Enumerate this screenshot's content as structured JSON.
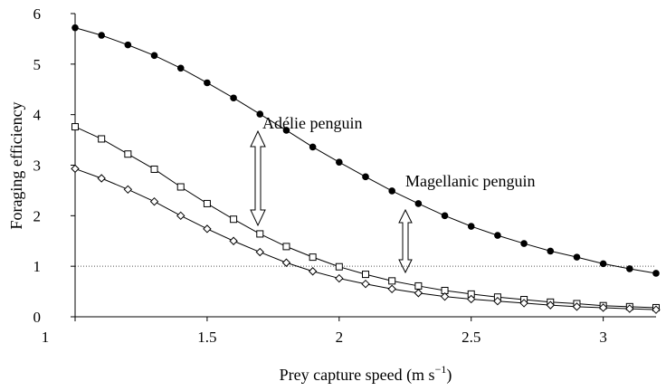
{
  "chart_data": {
    "type": "line",
    "x": [
      1,
      1.1,
      1.2,
      1.3,
      1.4,
      1.5,
      1.6,
      1.7,
      1.8,
      1.9,
      2,
      2.1,
      2.2,
      2.3,
      2.4,
      2.5,
      2.6,
      2.7,
      2.8,
      2.9,
      3,
      3.1,
      3.2
    ],
    "series": [
      {
        "marker": "circle",
        "color": "#000000",
        "values": [
          5.72,
          5.57,
          5.38,
          5.17,
          4.92,
          4.63,
          4.33,
          4.01,
          3.69,
          3.36,
          3.06,
          2.77,
          2.49,
          2.24,
          2.0,
          1.79,
          1.61,
          1.45,
          1.3,
          1.18,
          1.05,
          0.95,
          0.86
        ]
      },
      {
        "marker": "square",
        "color": "#000000",
        "values": [
          3.76,
          3.52,
          3.22,
          2.92,
          2.57,
          2.24,
          1.93,
          1.64,
          1.39,
          1.18,
          0.99,
          0.84,
          0.71,
          0.61,
          0.52,
          0.45,
          0.39,
          0.34,
          0.29,
          0.26,
          0.22,
          0.2,
          0.18
        ]
      },
      {
        "marker": "diamond",
        "color": "#000000",
        "values": [
          2.93,
          2.74,
          2.52,
          2.28,
          2.0,
          1.74,
          1.5,
          1.28,
          1.07,
          0.9,
          0.76,
          0.65,
          0.55,
          0.47,
          0.4,
          0.35,
          0.31,
          0.27,
          0.23,
          0.2,
          0.18,
          0.16,
          0.14
        ]
      }
    ],
    "xlim": [
      1,
      3.2
    ],
    "ylim": [
      0,
      6
    ],
    "xticks": [
      1,
      1.5,
      2,
      2.5,
      3
    ],
    "yticks": [
      0,
      1,
      2,
      3,
      4,
      5,
      6
    ],
    "hline": 1,
    "ylabel": "Foraging efficiency",
    "xlabel": {
      "text": "Prey capture speed (m s",
      "sup": "−1",
      "close": ")"
    },
    "annotations": [
      "Adélie penguin",
      "Magellanic penguin"
    ]
  }
}
